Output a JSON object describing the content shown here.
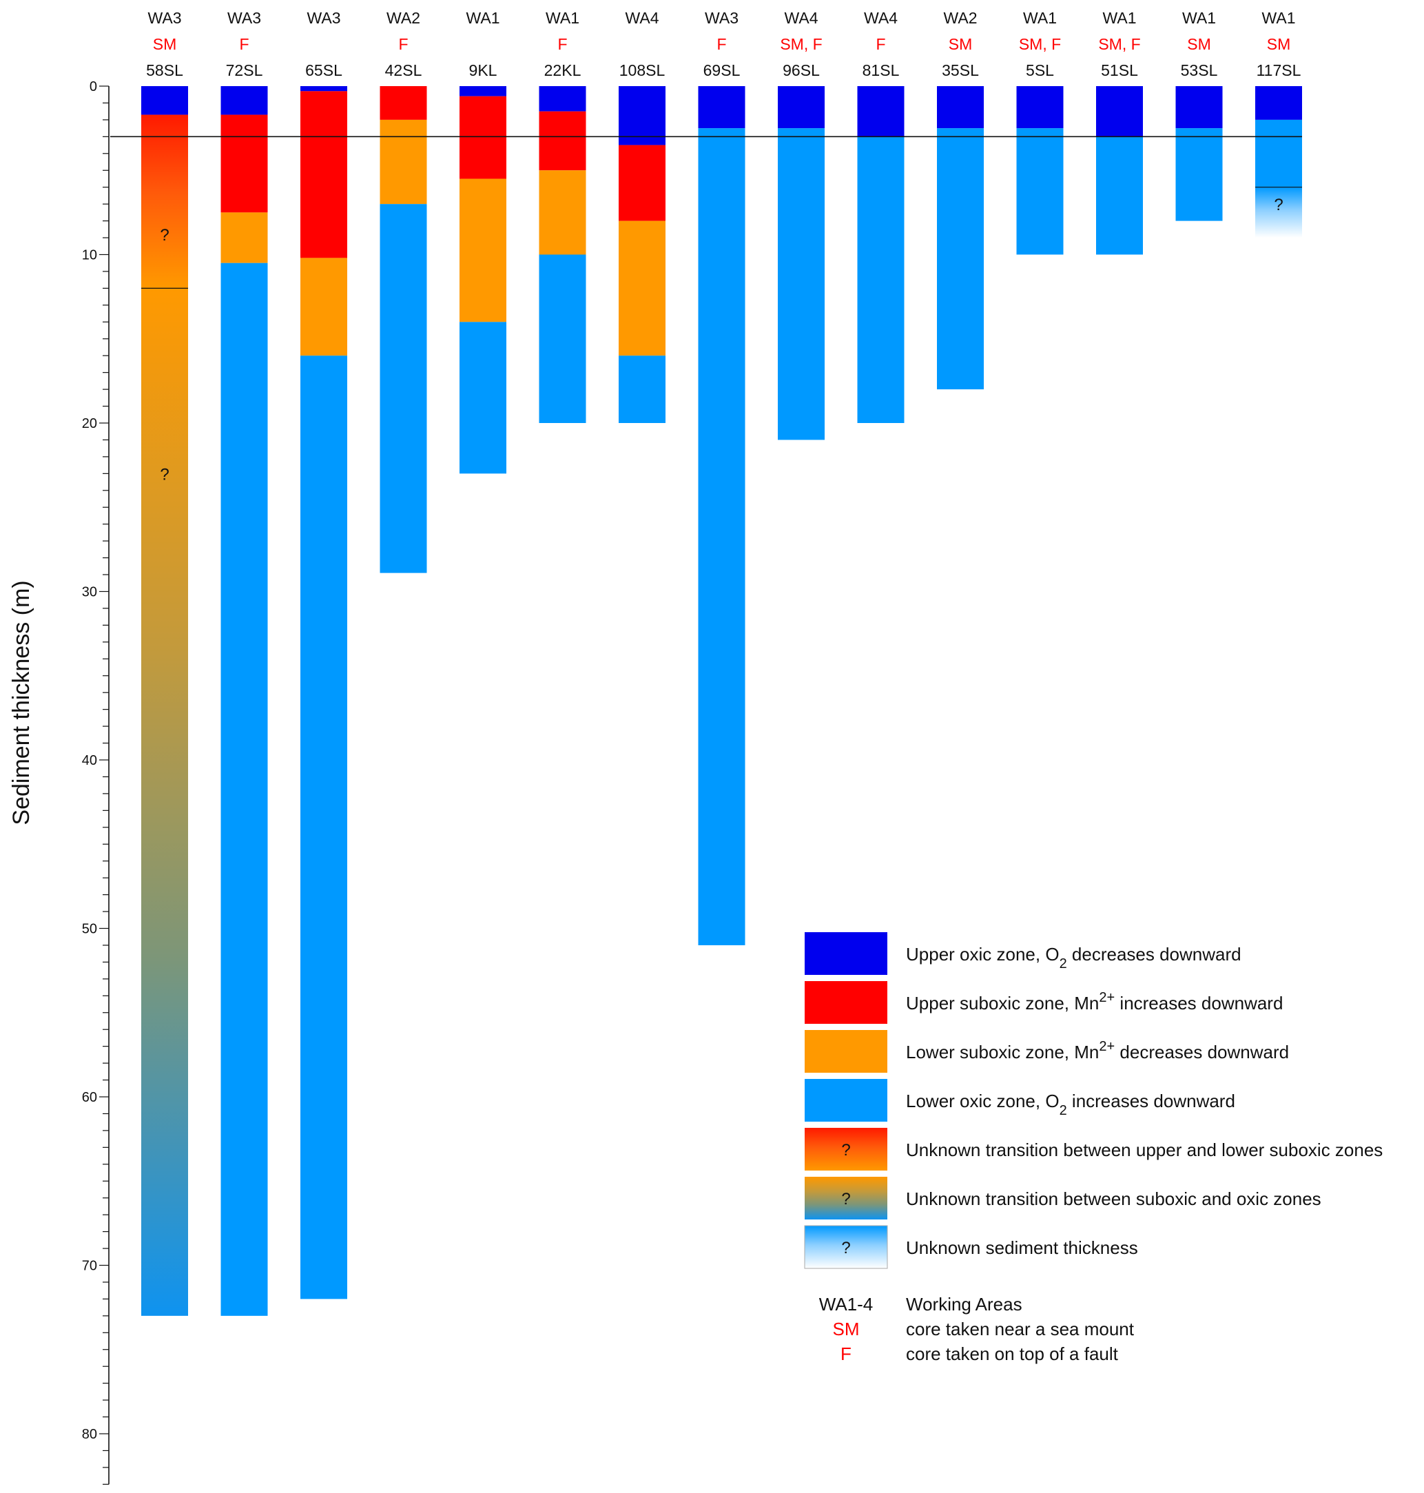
{
  "chart_data": {
    "type": "stacked-column",
    "ylabel": "Sediment thickness (m)",
    "ylim": [
      0,
      83
    ],
    "y_ticks": [
      "0",
      "10",
      "20",
      "30",
      "40",
      "50",
      "60",
      "70",
      "80"
    ],
    "reference_depth": 3,
    "colors": {
      "upper_oxic": "#0000ee",
      "upper_suboxic": "#ff0000",
      "lower_suboxic": "#ff9900",
      "lower_oxic": "#0099ff"
    },
    "cores": [
      {
        "area": "WA3",
        "setting": "SM",
        "name": "58SL",
        "segments": [
          {
            "zone": "upper_oxic",
            "from": 0,
            "to": 1.7
          },
          {
            "zone": "unknown_suboxic_transition",
            "from": 1.7,
            "to": 12
          },
          {
            "zone": "unknown_suboxic_oxic_transition",
            "from": 12,
            "to": 73
          }
        ],
        "dividers": [
          12
        ],
        "questions": [
          8.8,
          23
        ]
      },
      {
        "area": "WA3",
        "setting": "F",
        "name": "72SL",
        "segments": [
          {
            "zone": "upper_oxic",
            "from": 0,
            "to": 1.7
          },
          {
            "zone": "upper_suboxic",
            "from": 1.7,
            "to": 7.5
          },
          {
            "zone": "lower_suboxic",
            "from": 7.5,
            "to": 10.5
          },
          {
            "zone": "lower_oxic",
            "from": 10.5,
            "to": 73
          }
        ]
      },
      {
        "area": "WA3",
        "setting": "",
        "name": "65SL",
        "segments": [
          {
            "zone": "upper_oxic",
            "from": 0,
            "to": 0.3
          },
          {
            "zone": "upper_suboxic",
            "from": 0.3,
            "to": 10.2
          },
          {
            "zone": "lower_suboxic",
            "from": 10.2,
            "to": 16
          },
          {
            "zone": "lower_oxic",
            "from": 16,
            "to": 72
          }
        ]
      },
      {
        "area": "WA2",
        "setting": "F",
        "name": "42SL",
        "segments": [
          {
            "zone": "upper_suboxic",
            "from": 0,
            "to": 2
          },
          {
            "zone": "lower_suboxic",
            "from": 2,
            "to": 7
          },
          {
            "zone": "lower_oxic",
            "from": 7,
            "to": 28.9
          }
        ]
      },
      {
        "area": "WA1",
        "setting": "",
        "name": "9KL",
        "segments": [
          {
            "zone": "upper_oxic",
            "from": 0,
            "to": 0.6
          },
          {
            "zone": "upper_suboxic",
            "from": 0.6,
            "to": 5.5
          },
          {
            "zone": "lower_suboxic",
            "from": 5.5,
            "to": 14
          },
          {
            "zone": "lower_oxic",
            "from": 14,
            "to": 23
          }
        ]
      },
      {
        "area": "WA1",
        "setting": "F",
        "name": "22KL",
        "segments": [
          {
            "zone": "upper_oxic",
            "from": 0,
            "to": 1.5
          },
          {
            "zone": "upper_suboxic",
            "from": 1.5,
            "to": 5
          },
          {
            "zone": "lower_suboxic",
            "from": 5,
            "to": 10
          },
          {
            "zone": "lower_oxic",
            "from": 10,
            "to": 20
          }
        ]
      },
      {
        "area": "WA4",
        "setting": "",
        "name": "108SL",
        "segments": [
          {
            "zone": "upper_oxic",
            "from": 0,
            "to": 3.5
          },
          {
            "zone": "upper_suboxic",
            "from": 3.5,
            "to": 8
          },
          {
            "zone": "lower_suboxic",
            "from": 8,
            "to": 16
          },
          {
            "zone": "lower_oxic",
            "from": 16,
            "to": 20
          }
        ]
      },
      {
        "area": "WA3",
        "setting": "F",
        "name": "69SL",
        "segments": [
          {
            "zone": "upper_oxic",
            "from": 0,
            "to": 2.5
          },
          {
            "zone": "lower_oxic",
            "from": 2.5,
            "to": 51
          }
        ]
      },
      {
        "area": "WA4",
        "setting": "SM, F",
        "name": "96SL",
        "segments": [
          {
            "zone": "upper_oxic",
            "from": 0,
            "to": 2.5
          },
          {
            "zone": "lower_oxic",
            "from": 2.5,
            "to": 21
          }
        ]
      },
      {
        "area": "WA4",
        "setting": "F",
        "name": "81SL",
        "segments": [
          {
            "zone": "upper_oxic",
            "from": 0,
            "to": 3
          },
          {
            "zone": "lower_oxic",
            "from": 3,
            "to": 20
          }
        ]
      },
      {
        "area": "WA2",
        "setting": "SM",
        "name": "35SL",
        "segments": [
          {
            "zone": "upper_oxic",
            "from": 0,
            "to": 2.5
          },
          {
            "zone": "lower_oxic",
            "from": 2.5,
            "to": 18
          }
        ]
      },
      {
        "area": "WA1",
        "setting": "SM, F",
        "name": "5SL",
        "segments": [
          {
            "zone": "upper_oxic",
            "from": 0,
            "to": 2.5
          },
          {
            "zone": "lower_oxic",
            "from": 2.5,
            "to": 10
          }
        ]
      },
      {
        "area": "WA1",
        "setting": "SM, F",
        "name": "51SL",
        "segments": [
          {
            "zone": "upper_oxic",
            "from": 0,
            "to": 3
          },
          {
            "zone": "lower_oxic",
            "from": 3,
            "to": 10
          }
        ]
      },
      {
        "area": "WA1",
        "setting": "SM",
        "name": "53SL",
        "segments": [
          {
            "zone": "upper_oxic",
            "from": 0,
            "to": 2.5
          },
          {
            "zone": "lower_oxic",
            "from": 2.5,
            "to": 8
          }
        ]
      },
      {
        "area": "WA1",
        "setting": "SM",
        "name": "117SL",
        "segments": [
          {
            "zone": "upper_oxic",
            "from": 0,
            "to": 2
          },
          {
            "zone": "lower_oxic",
            "from": 2,
            "to": 6
          },
          {
            "zone": "unknown_thickness",
            "from": 6,
            "to": 9
          }
        ],
        "dividers": [
          6
        ],
        "questions": [
          7
        ]
      }
    ],
    "legend": [
      {
        "swatch": "upper_oxic",
        "parts": [
          {
            "t": "Upper oxic zone, O"
          },
          {
            "t": "2",
            "sub": true
          },
          {
            "t": " decreases downward"
          }
        ]
      },
      {
        "swatch": "upper_suboxic",
        "parts": [
          {
            "t": "Upper suboxic zone, Mn"
          },
          {
            "t": "2+",
            "sup": true
          },
          {
            "t": " increases downward"
          }
        ]
      },
      {
        "swatch": "lower_suboxic",
        "parts": [
          {
            "t": "Lower suboxic zone, Mn"
          },
          {
            "t": "2+",
            "sup": true
          },
          {
            "t": " decreases downward"
          }
        ]
      },
      {
        "swatch": "lower_oxic",
        "parts": [
          {
            "t": "Lower oxic zone, O"
          },
          {
            "t": "2",
            "sub": true
          },
          {
            "t": " increases downward"
          }
        ]
      },
      {
        "swatch": "unknown_suboxic_transition",
        "question": "?",
        "parts": [
          {
            "t": "Unknown transition between upper and lower suboxic zones"
          }
        ]
      },
      {
        "swatch": "unknown_suboxic_oxic_transition",
        "question": "?",
        "parts": [
          {
            "t": "Unknown transition between suboxic and oxic zones"
          }
        ]
      },
      {
        "swatch": "unknown_thickness",
        "question": "?",
        "parts": [
          {
            "t": "Unknown sediment thickness"
          }
        ]
      }
    ],
    "key": [
      {
        "code": "WA1-4",
        "code_color": "#111111",
        "text": "Working Areas"
      },
      {
        "code": "SM",
        "code_color": "#ff0000",
        "text": "core taken near a sea mount"
      },
      {
        "code": "F",
        "code_color": "#ff0000",
        "text": "core taken on top of a fault"
      }
    ]
  }
}
